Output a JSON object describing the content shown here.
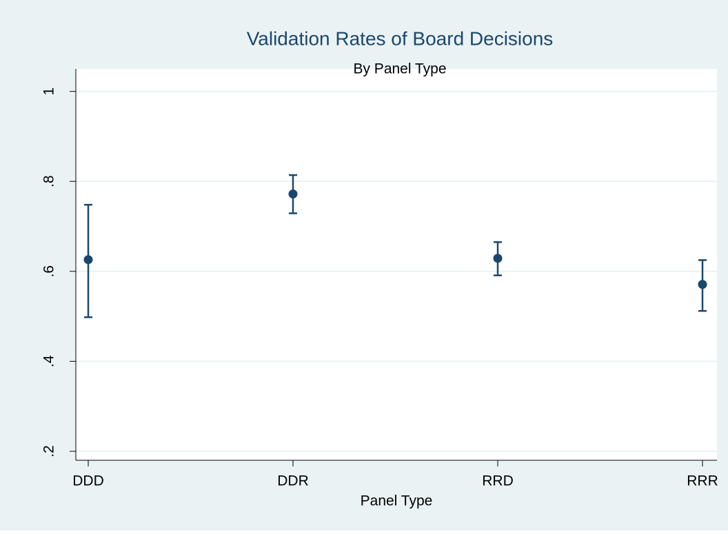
{
  "chart_data": {
    "type": "errorbar",
    "title": "Validation Rates of Board Decisions",
    "subtitle": "By Panel Type",
    "x_label": "Panel Type",
    "categories": [
      "DDD",
      "DDR",
      "RRD",
      "RRR"
    ],
    "values": [
      0.626,
      0.772,
      0.629,
      0.571
    ],
    "lower": [
      0.498,
      0.729,
      0.591,
      0.512
    ],
    "upper": [
      0.748,
      0.814,
      0.665,
      0.625
    ],
    "color": "#1a476f",
    "ylim": [
      0.18,
      1.05
    ],
    "yticks": [
      {
        "value": 0.2,
        "label": ".2"
      },
      {
        "value": 0.4,
        "label": ".4"
      },
      {
        "value": 0.6,
        "label": ".6"
      },
      {
        "value": 0.8,
        "label": ".8"
      },
      1
    ],
    "grid": true
  }
}
